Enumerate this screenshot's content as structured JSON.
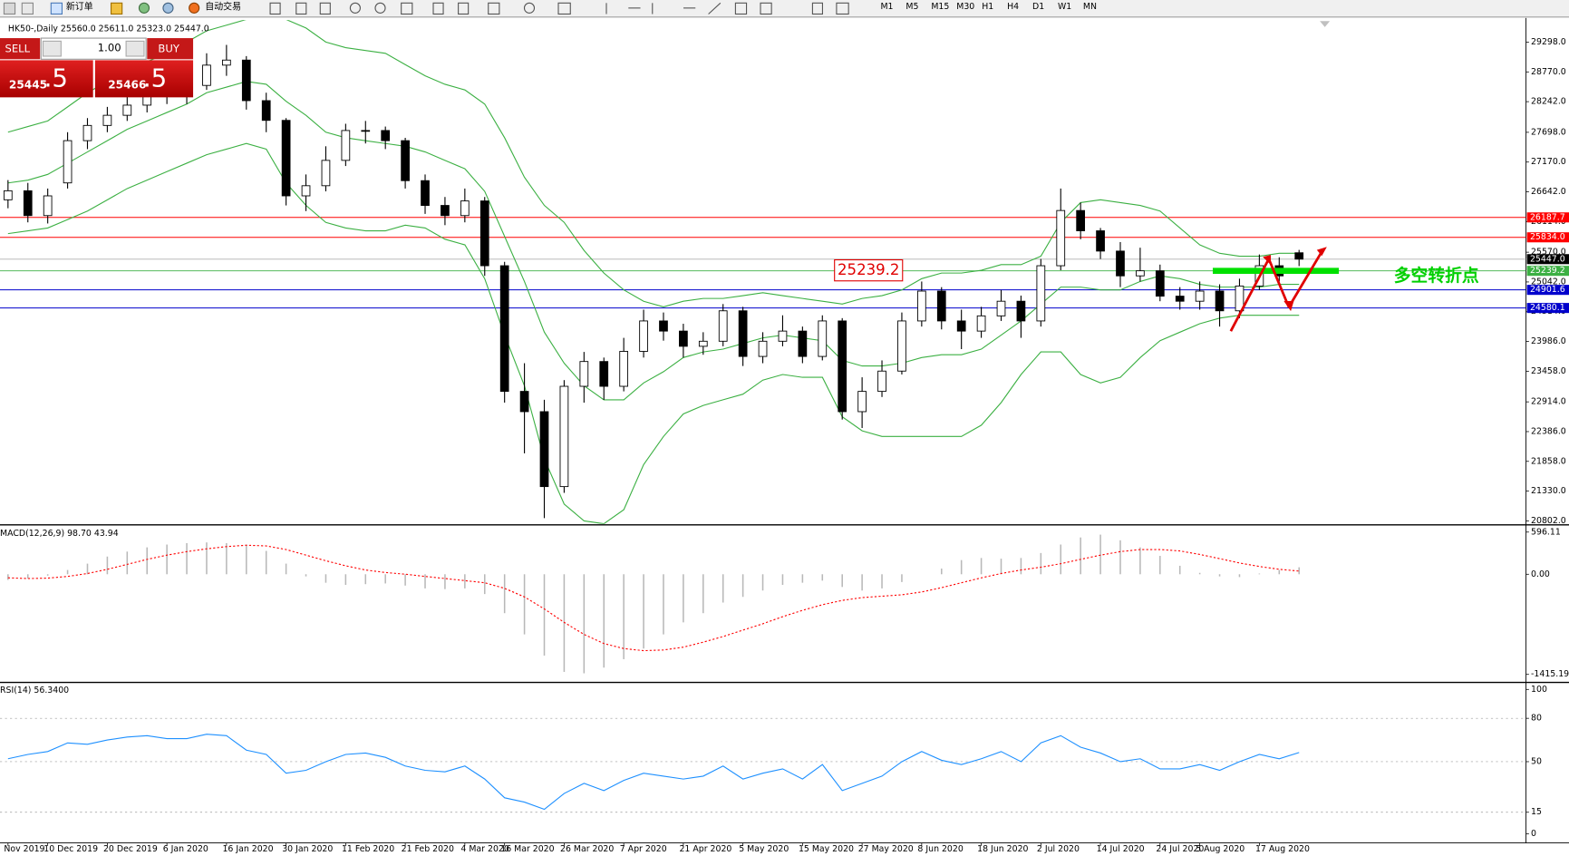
{
  "toolbar": {
    "items": [
      "新订单",
      "自动交易"
    ],
    "timeframes": [
      "M1",
      "M5",
      "M15",
      "M30",
      "H1",
      "H4",
      "D1",
      "W1",
      "MN"
    ]
  },
  "trade_panel": {
    "sell": "SELL",
    "buy": "BUY",
    "lot": "1.00",
    "sell_price": "25445",
    "sell_pips": ".5",
    "buy_price": "25466",
    "buy_pips": ".5"
  },
  "chart_data": [
    {
      "type": "candlestick",
      "title": "HK50-,Daily 25560.0 25611.0 25323.0 25447.0",
      "x": [
        "Nov 2019",
        null,
        "10 Dec 2019",
        null,
        null,
        "20 Dec 2019",
        null,
        null,
        "6 Jan 2020",
        null,
        null,
        "16 Jan 2020",
        null,
        null,
        "30 Jan 2020",
        null,
        null,
        "11 Feb 2020",
        null,
        null,
        "21 Feb 2020",
        null,
        null,
        "4 Mar 2020",
        null,
        "16 Mar 2020",
        null,
        null,
        "26 Mar 2020",
        null,
        null,
        "7 Apr 2020",
        null,
        null,
        "21 Apr 2020",
        null,
        null,
        "5 May 2020",
        null,
        null,
        "15 May 2020",
        null,
        null,
        "27 May 2020",
        null,
        null,
        "8 Jun 2020",
        null,
        null,
        "18 Jun 2020",
        null,
        null,
        "2 Jul 2020",
        null,
        null,
        "14 Jul 2020",
        null,
        null,
        "24 Jul 2020",
        null,
        "5 Aug 2020",
        null,
        null,
        "17 Aug 2020",
        null,
        null
      ],
      "open": [
        26500,
        26660,
        26220,
        26800,
        27550,
        27820,
        28000,
        28180,
        28530,
        28350,
        28530,
        28890,
        28980,
        28260,
        27910,
        26570,
        26750,
        27200,
        27730,
        27730,
        27550,
        26840,
        26400,
        26220,
        26480,
        25330,
        23100,
        22740,
        21410,
        23190,
        23630,
        23190,
        23810,
        24350,
        24170,
        23900,
        23990,
        24530,
        23720,
        23990,
        24170,
        23720,
        24350,
        22740,
        23100,
        23460,
        24350,
        24880,
        24350,
        24170,
        24440,
        24700,
        24350,
        25330,
        26310,
        25950,
        25590,
        25150,
        25240,
        24790,
        24700,
        24880,
        24530,
        24970,
        25330,
        25560
      ],
      "high": [
        26850,
        26800,
        26700,
        27700,
        27950,
        28150,
        28350,
        28700,
        28650,
        28700,
        29100,
        29250,
        29050,
        28400,
        27950,
        26950,
        27450,
        27850,
        27900,
        27800,
        27600,
        26950,
        26550,
        26700,
        26550,
        25400,
        23600,
        22950,
        23300,
        23800,
        23700,
        24050,
        24550,
        24500,
        24300,
        24150,
        24650,
        24600,
        24150,
        24450,
        24250,
        24450,
        24400,
        23350,
        23650,
        24500,
        25050,
        24950,
        24550,
        24600,
        24900,
        24800,
        25450,
        26700,
        26450,
        26000,
        25750,
        25650,
        25350,
        24950,
        25050,
        25000,
        25100,
        25530,
        25480,
        25611
      ],
      "low": [
        26350,
        26100,
        26080,
        26700,
        27400,
        27700,
        27900,
        28050,
        28200,
        28200,
        28450,
        28700,
        28100,
        27700,
        26400,
        26300,
        26650,
        27100,
        27500,
        27400,
        26700,
        26250,
        26050,
        26100,
        25150,
        22900,
        22000,
        20850,
        21300,
        22900,
        22950,
        23100,
        23700,
        24000,
        23700,
        23750,
        23900,
        23550,
        23600,
        23900,
        23600,
        23650,
        22600,
        22450,
        23000,
        23400,
        24250,
        24200,
        23850,
        24050,
        24350,
        24050,
        24250,
        25250,
        25800,
        25450,
        24950,
        25050,
        24700,
        24550,
        24550,
        24250,
        24400,
        24900,
        25050,
        25323
      ],
      "close": [
        26660,
        26220,
        26570,
        27550,
        27820,
        28000,
        28180,
        28530,
        28350,
        28530,
        28890,
        28980,
        28260,
        27910,
        26570,
        26750,
        27200,
        27730,
        27730,
        27550,
        26840,
        26400,
        26220,
        26480,
        25330,
        23100,
        22740,
        21410,
        23190,
        23630,
        23190,
        23810,
        24350,
        24170,
        23900,
        23990,
        24530,
        23720,
        23990,
        24170,
        23720,
        24350,
        22740,
        23100,
        23460,
        24350,
        24880,
        24350,
        24170,
        24440,
        24700,
        24350,
        25330,
        26310,
        25950,
        25590,
        25150,
        25240,
        24790,
        24700,
        24880,
        24530,
        24970,
        25330,
        25150,
        25447
      ],
      "up_color": "#ffffff",
      "down_color": "#000000",
      "series": [
        {
          "color": "#3cb043",
          "values": [
            27700,
            27800,
            27900,
            28150,
            28400,
            28600,
            28800,
            28950,
            29100,
            29300,
            29500,
            29600,
            29700,
            29700,
            29700,
            29550,
            29300,
            29200,
            29150,
            29100,
            28900,
            28700,
            28550,
            28450,
            28200,
            27600,
            26900,
            26400,
            26100,
            25600,
            25200,
            24900,
            24700,
            24600,
            24700,
            24750,
            24750,
            24800,
            24850,
            24800,
            24750,
            24700,
            24650,
            24750,
            24800,
            24900,
            25100,
            25200,
            25200,
            25250,
            25350,
            25350,
            25500,
            26100,
            26450,
            26500,
            26450,
            26400,
            26300,
            26000,
            25700,
            25550,
            25500,
            25500,
            25550,
            25550
          ]
        },
        {
          "color": "#3cb043",
          "values": [
            26800,
            26850,
            26950,
            27150,
            27350,
            27550,
            27750,
            27900,
            28050,
            28200,
            28400,
            28500,
            28600,
            28550,
            28250,
            28000,
            27700,
            27600,
            27550,
            27500,
            27450,
            27350,
            27200,
            27050,
            26650,
            25850,
            25050,
            24150,
            23600,
            23200,
            22950,
            22950,
            23250,
            23450,
            23700,
            23800,
            23850,
            23950,
            24050,
            24100,
            24050,
            24000,
            23650,
            23550,
            23550,
            23600,
            23700,
            23750,
            23750,
            23850,
            24100,
            24350,
            24650,
            24950,
            24950,
            24900,
            24900,
            25050,
            25150,
            25100,
            25000,
            24950,
            24950,
            24950,
            25000,
            25000
          ]
        },
        {
          "color": "#3cb043",
          "values": [
            25900,
            25950,
            26000,
            26150,
            26300,
            26500,
            26700,
            26850,
            27000,
            27150,
            27300,
            27400,
            27500,
            27400,
            26800,
            26400,
            26100,
            26000,
            25950,
            25950,
            26050,
            26000,
            25800,
            25700,
            25100,
            24100,
            23200,
            21900,
            21100,
            20800,
            20750,
            21000,
            21800,
            22300,
            22700,
            22850,
            22950,
            23050,
            23300,
            23400,
            23350,
            23350,
            22650,
            22400,
            22300,
            22300,
            22300,
            22300,
            22300,
            22500,
            22900,
            23400,
            23800,
            23800,
            23400,
            23250,
            23350,
            23700,
            24000,
            24150,
            24300,
            24400,
            24450,
            24450,
            24450,
            24450
          ]
        }
      ],
      "ylim": [
        20749,
        29690
      ],
      "yticks": [
        {
          "value": 29298,
          "label": "29298.0"
        },
        {
          "value": 28770,
          "label": "28770.0"
        },
        {
          "value": 28242,
          "label": "28242.0"
        },
        {
          "value": 27698,
          "label": "27698.0"
        },
        {
          "value": 27170,
          "label": "27170.0"
        },
        {
          "value": 26642,
          "label": "26642.0"
        },
        {
          "value": 26114,
          "label": "26114.0"
        },
        {
          "value": 25570,
          "label": "25570.0"
        },
        {
          "value": 25042,
          "label": "25042.0"
        },
        {
          "value": 24514,
          "label": "24514.0"
        },
        {
          "value": 23986,
          "label": "23986.0"
        },
        {
          "value": 23458,
          "label": "23458.0"
        },
        {
          "value": 22914,
          "label": "22914.0"
        },
        {
          "value": 22386,
          "label": "22386.0"
        },
        {
          "value": 21858,
          "label": "21858.0"
        },
        {
          "value": 21330,
          "label": "21330.0"
        },
        {
          "value": 20802,
          "label": "20802.0"
        }
      ],
      "hlines": [
        {
          "value": 26187.7,
          "color": "#ff0000"
        },
        {
          "value": {
            "value": 25834,
            "label": "25834.0"
          },
          "color": "#ff0000"
        },
        {
          "value": 25239.2,
          "color": "#3cb043"
        },
        {
          "value": 24901.6,
          "color": "#0000cc"
        },
        {
          "value": 24580.1,
          "color": "#0000cc"
        }
      ],
      "last": {
        "value": 25447,
        "label": "25447.0"
      },
      "annotation": "多空转折点"
    },
    {
      "type": "macd",
      "title": "MACD(12,26,9) 98.70 43.94",
      "histogram": [
        -80,
        -60,
        -20,
        60,
        150,
        250,
        320,
        380,
        420,
        440,
        450,
        440,
        420,
        330,
        150,
        -30,
        -120,
        -150,
        -140,
        -130,
        -160,
        -200,
        -210,
        -200,
        -280,
        -550,
        -850,
        -1150,
        -1380,
        -1400,
        -1320,
        -1200,
        -1050,
        -850,
        -680,
        -550,
        -400,
        -320,
        -230,
        -150,
        -120,
        -90,
        -180,
        -230,
        -200,
        -110,
        0,
        80,
        200,
        230,
        220,
        230,
        300,
        420,
        520,
        560,
        480,
        380,
        260,
        120,
        20,
        -30,
        -40,
        10,
        60,
        98.7
      ],
      "signal": [
        -50,
        -60,
        -55,
        -30,
        10,
        70,
        140,
        210,
        270,
        320,
        360,
        390,
        410,
        400,
        350,
        270,
        190,
        120,
        60,
        25,
        0,
        -30,
        -60,
        -90,
        -120,
        -200,
        -320,
        -490,
        -680,
        -850,
        -980,
        -1050,
        -1080,
        -1070,
        -1030,
        -960,
        -880,
        -790,
        -700,
        -600,
        -510,
        -430,
        -370,
        -330,
        -310,
        -290,
        -250,
        -190,
        -120,
        -50,
        10,
        60,
        100,
        150,
        210,
        270,
        320,
        350,
        350,
        330,
        280,
        220,
        160,
        110,
        70,
        43.94
      ],
      "histogram_color": "#b8b8b8",
      "signal_color": "#ff0000",
      "ylim": [
        -1500,
        670
      ],
      "yticks": [
        596.11,
        {
          "value": 0,
          "label": "0.00"
        },
        -1415.19
      ]
    },
    {
      "type": "line",
      "title": "RSI(14) 56.3400",
      "color": "#1e90ff",
      "values": [
        52,
        55,
        57,
        63,
        62,
        65,
        67,
        68,
        66,
        66,
        69,
        68,
        58,
        55,
        42,
        44,
        50,
        55,
        56,
        53,
        47,
        44,
        43,
        47,
        38,
        25,
        22,
        17,
        28,
        35,
        30,
        37,
        42,
        40,
        38,
        40,
        47,
        38,
        42,
        45,
        38,
        48,
        30,
        35,
        40,
        50,
        57,
        51,
        48,
        52,
        57,
        50,
        63,
        68,
        60,
        56,
        50,
        52,
        45,
        45,
        48,
        44,
        50,
        55,
        52,
        56.34
      ],
      "ylim": [
        0,
        100
      ],
      "yticks": [
        100,
        80,
        50,
        15,
        0
      ],
      "grid": "dotted"
    }
  ]
}
